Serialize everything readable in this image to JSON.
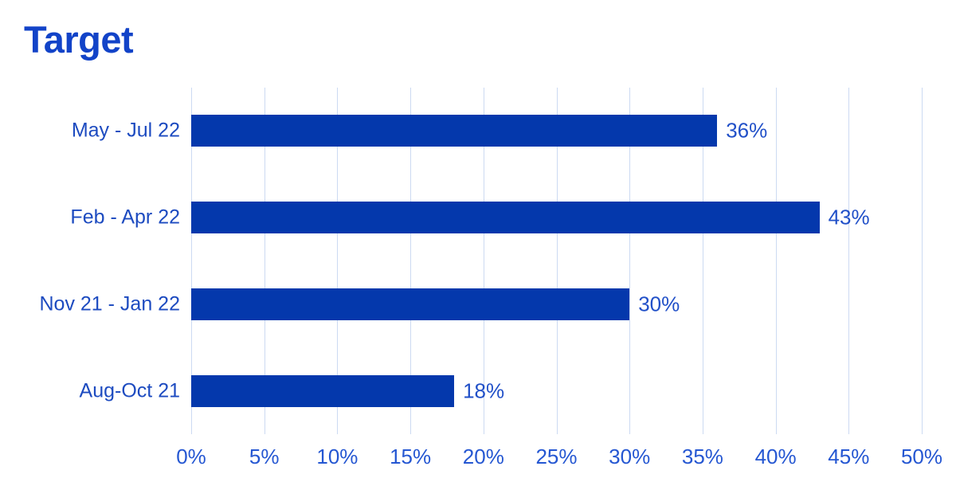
{
  "chart": {
    "title": "Target"
  },
  "colors": {
    "bar": "#0438ac",
    "title_text": "#1243c8",
    "category_text": "#1d4bc0",
    "value_text": "#2150c8",
    "tick_text": "#2557d2",
    "gridline": "#ccdaf2",
    "background": "#ffffff"
  },
  "chart_data": {
    "type": "bar",
    "orientation": "horizontal",
    "title": "Target",
    "categories": [
      "May - Jul 22",
      "Feb - Apr 22",
      "Nov 21 - Jan 22",
      "Aug-Oct 21"
    ],
    "values": [
      36,
      43,
      30,
      18
    ],
    "value_labels": [
      "36%",
      "43%",
      "30%",
      "18%"
    ],
    "xlabel": "",
    "ylabel": "",
    "xlim": [
      0,
      50
    ],
    "x_ticks": [
      {
        "value": 0,
        "label": "0%"
      },
      {
        "value": 5,
        "label": "5%"
      },
      {
        "value": 10,
        "label": "10%"
      },
      {
        "value": 15,
        "label": "15%"
      },
      {
        "value": 20,
        "label": "20%"
      },
      {
        "value": 25,
        "label": "25%"
      },
      {
        "value": 30,
        "label": "30%"
      },
      {
        "value": 35,
        "label": "35%"
      },
      {
        "value": 40,
        "label": "40%"
      },
      {
        "value": 45,
        "label": "45%"
      },
      {
        "value": 50,
        "label": "50%"
      }
    ],
    "grid": "vertical",
    "legend": "none",
    "bar_color": "#0438ac"
  }
}
